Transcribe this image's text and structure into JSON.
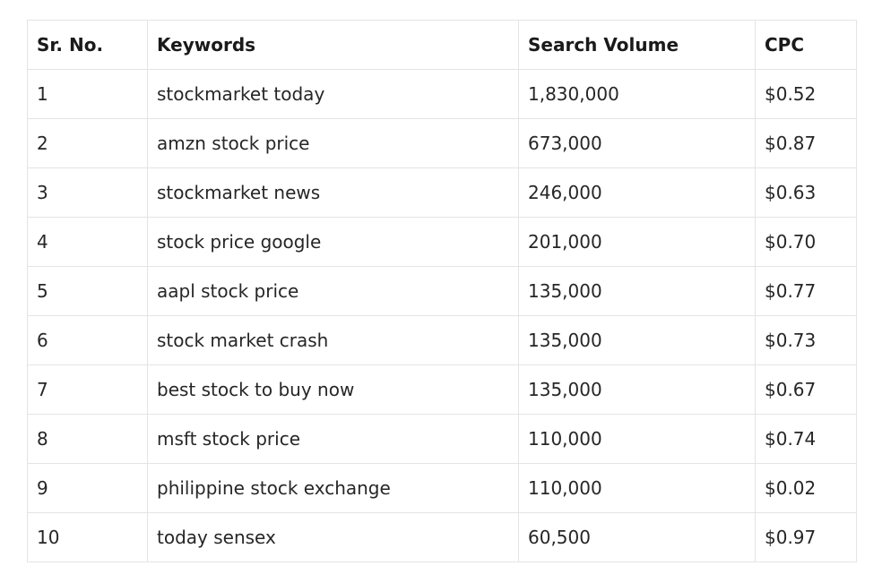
{
  "table": {
    "headers": [
      "Sr. No.",
      "Keywords",
      "Search Volume",
      "CPC"
    ],
    "rows": [
      [
        "1",
        "stockmarket today",
        "1,830,000",
        "$0.52"
      ],
      [
        "2",
        "amzn stock price",
        "673,000",
        "$0.87"
      ],
      [
        "3",
        "stockmarket news",
        "246,000",
        "$0.63"
      ],
      [
        "4",
        "stock price google",
        "201,000",
        "$0.70"
      ],
      [
        "5",
        "aapl stock price",
        "135,000",
        "$0.77"
      ],
      [
        "6",
        "stock market crash",
        "135,000",
        "$0.73"
      ],
      [
        "7",
        "best stock to buy now",
        "135,000",
        "$0.67"
      ],
      [
        "8",
        "msft stock price",
        "110,000",
        "$0.74"
      ],
      [
        "9",
        "philippine stock exchange",
        "110,000",
        "$0.02"
      ],
      [
        "10",
        "today sensex",
        "60,500",
        "$0.97"
      ]
    ]
  }
}
